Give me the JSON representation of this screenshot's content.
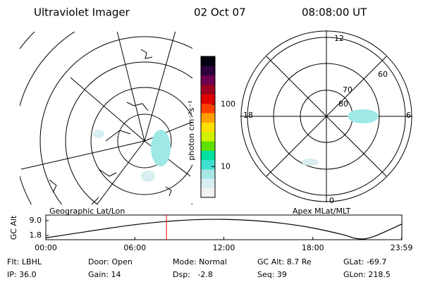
{
  "header": {
    "title": "Ultraviolet Imager",
    "date": "02 Oct 07",
    "time": "08:08:00 UT"
  },
  "left_panel": {
    "label": "Geographic Lat/Lon"
  },
  "right_panel": {
    "label": "Apex MLat/MLT",
    "mlt_labels": [
      "12",
      "6",
      "0",
      "18"
    ],
    "mlat_labels": [
      "80",
      "70",
      "60"
    ]
  },
  "colorbar": {
    "label": "photon cm⁻²s⁻¹",
    "clim": [
      3.2,
      590
    ],
    "ticks": [
      10,
      100
    ],
    "log": true,
    "colors": [
      "#f2f2f2",
      "#d8eef0",
      "#a8e6e6",
      "#40e0d0",
      "#00e0a0",
      "#60e000",
      "#d0f000",
      "#ffe000",
      "#ffa000",
      "#ff4000",
      "#e00000",
      "#a00020",
      "#700050",
      "#300040",
      "#000010"
    ]
  },
  "chart_data": {
    "type": "line",
    "ylabel": "GC Alt",
    "x": [
      0,
      2,
      4,
      6,
      8,
      10,
      12,
      14,
      16,
      18,
      20,
      21,
      22,
      24
    ],
    "values": [
      0.6,
      2.8,
      5.0,
      7.0,
      8.5,
      9.4,
      9.6,
      9.0,
      7.6,
      5.4,
      2.2,
      0.2,
      1.0,
      7.3
    ],
    "color": "#000000",
    "xlim": [
      0,
      24
    ],
    "ylim": [
      -0.3,
      11.7
    ],
    "xticks": [
      {
        "value": 0,
        "label": "00:00"
      },
      {
        "value": 6,
        "label": "06:00"
      },
      {
        "value": 12,
        "label": "12:00"
      },
      {
        "value": 18,
        "label": "18:00"
      },
      {
        "value": 23.98,
        "label": "23:59"
      }
    ],
    "yticks": [
      {
        "value": 9.0,
        "label": "9.0"
      },
      {
        "value": 1.8,
        "label": "1.8"
      }
    ],
    "marker_x": 8.133,
    "marker_color": "#ff0000"
  },
  "footer": {
    "rows": [
      [
        "Flt: LBHL",
        "Door: Open",
        "Mode: Normal",
        "GC Alt: 8.7 Re",
        "GLat: -69.7"
      ],
      [
        "IP: 36.0",
        "Gain: 14",
        "Dsp:   -2.8",
        "Seq: 39",
        "GLon: 218.5"
      ]
    ]
  }
}
